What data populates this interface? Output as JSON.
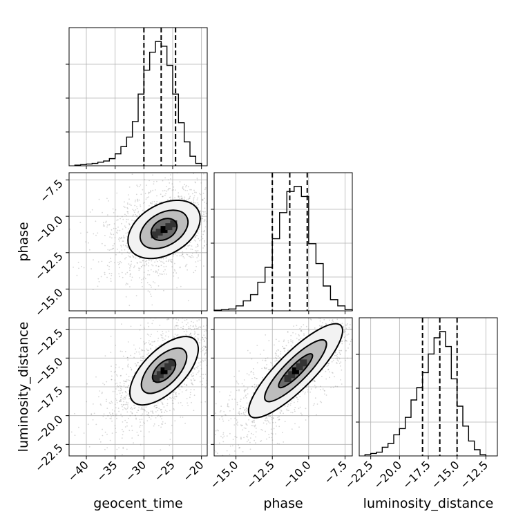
{
  "chart_data": {
    "type": "corner",
    "parameters": [
      "geocent_time",
      "phase",
      "luminosity_distance"
    ],
    "xlabels": [
      "geocent_time",
      "phase",
      "luminosity_distance"
    ],
    "ylabels": [
      "",
      "phase",
      "luminosity_distance"
    ],
    "ticks": {
      "geocent_time": [
        "−40",
        "−35",
        "−30",
        "−25",
        "−20"
      ],
      "phase": [
        "−7.5",
        "−10.0",
        "−12.5",
        "−15.0"
      ],
      "phase_x": [
        "−15.0",
        "−12.5",
        "−10.0",
        "−7.5"
      ],
      "luminosity_distance": [
        "−12.5",
        "−15.0",
        "−17.5",
        "−20.0",
        "−22.5"
      ],
      "luminosity_distance_x": [
        "−22.5",
        "−20.0",
        "−17.5",
        "−15.0",
        "−12.5"
      ]
    },
    "tick_values": {
      "geocent_time": [
        -40,
        -35,
        -30,
        -25,
        -20
      ],
      "phase": [
        -15,
        -12.5,
        -10,
        -7.5
      ],
      "luminosity_distance": [
        -22.5,
        -20,
        -17.5,
        -15,
        -12.5
      ]
    },
    "ranges": {
      "geocent_time": [
        -43,
        -19
      ],
      "phase": [
        -16.5,
        -7
      ],
      "luminosity_distance": [
        -23.5,
        -11.5
      ]
    },
    "histograms": {
      "geocent_time": {
        "edges": [
          -42,
          -41,
          -40,
          -39,
          -38,
          -37,
          -36,
          -35,
          -34,
          -33,
          -32,
          -31,
          -30,
          -29,
          -28,
          -27,
          -26,
          -25,
          -24,
          -23,
          -22,
          -21,
          -20
        ],
        "counts": [
          0.5,
          1,
          1.5,
          2,
          3,
          4,
          6,
          10,
          16,
          24,
          37,
          60,
          80,
          95,
          104,
          100,
          84,
          60,
          36,
          20,
          8,
          2
        ]
      },
      "phase": {
        "edges": [
          -16.5,
          -16,
          -15.5,
          -15,
          -14.5,
          -14,
          -13.5,
          -13,
          -12.5,
          -12,
          -11.5,
          -11,
          -10.5,
          -10,
          -9.5,
          -9,
          -8.5,
          -8,
          -7.5,
          -7
        ],
        "counts": [
          0.5,
          1,
          1.5,
          4,
          8,
          13,
          23,
          35,
          58,
          79,
          96,
          100,
          92,
          54,
          38,
          20,
          9,
          4,
          1
        ]
      },
      "luminosity_distance": {
        "edges": [
          -23,
          -22.5,
          -22,
          -21.5,
          -21,
          -20.5,
          -20,
          -19.5,
          -19,
          -18.5,
          -18,
          -17.5,
          -17,
          -16.5,
          -16,
          -15.5,
          -15,
          -14.5,
          -14,
          -13.5,
          -13,
          -12.5
        ],
        "counts": [
          1,
          2,
          3,
          7,
          10,
          17,
          22,
          31,
          45,
          55,
          67,
          82,
          95,
          100,
          88,
          62,
          40,
          24,
          12,
          5,
          1
        ]
      }
    },
    "quantiles": {
      "geocent_time": [
        -30,
        -27,
        -24.5
      ],
      "phase": [
        -12.5,
        -11.3,
        -10.1
      ],
      "luminosity_distance": [
        -18,
        -16.5,
        -15
      ]
    },
    "correlations": {
      "phase|geocent_time": {
        "center": [
          -26.5,
          -10.9
        ],
        "contours": [
          {
            "sx": 2.4,
            "sy": 0.75,
            "angle": 30
          },
          {
            "sx": 4.5,
            "sy": 1.25,
            "angle": 30
          },
          {
            "sx": 6.8,
            "sy": 1.9,
            "angle": 30
          }
        ]
      },
      "luminosity_distance|geocent_time": {
        "center": [
          -26.5,
          -16.1
        ],
        "contours": [
          {
            "sx": 2.5,
            "sy": 0.75,
            "angle": 45
          },
          {
            "sx": 5.0,
            "sy": 1.35,
            "angle": 45
          },
          {
            "sx": 7.6,
            "sy": 2.0,
            "angle": 45
          }
        ]
      },
      "luminosity_distance|phase": {
        "center": [
          -10.9,
          -16.1
        ],
        "contours": [
          {
            "sx": 1.6,
            "sy": 0.55,
            "angle": 45
          },
          {
            "sx": 2.9,
            "sy": 1.1,
            "angle": 45
          },
          {
            "sx": 4.4,
            "sy": 1.75,
            "angle": 45
          }
        ]
      }
    },
    "grid": true,
    "colors": {
      "hist": "#000000",
      "points": "#8a8a8a",
      "fill_dark": "#000000",
      "fill_light": "#e8e8e8"
    }
  }
}
